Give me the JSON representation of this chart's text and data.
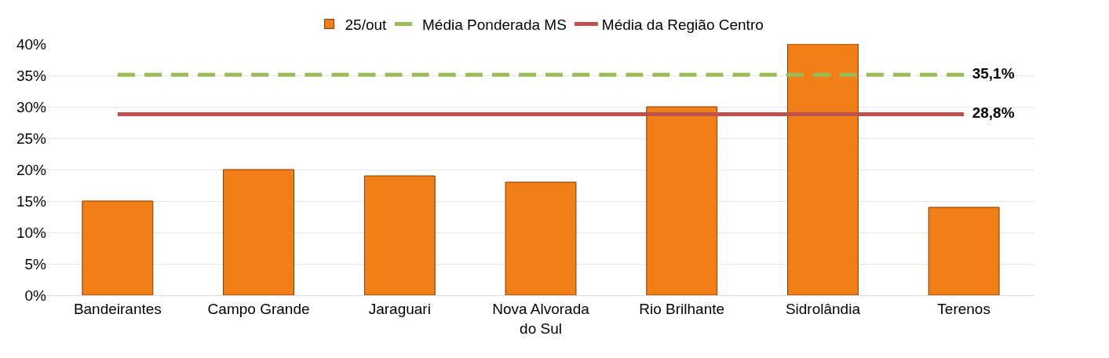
{
  "chart_data": {
    "type": "bar",
    "categories": [
      "Bandeirantes",
      "Campo Grande",
      "Jaraguari",
      "Nova Alvorada do Sul",
      "Rio Brilhante",
      "Sidrolândia",
      "Terenos"
    ],
    "series": [
      {
        "name": "25/out",
        "color": "#f07f17",
        "values": [
          15,
          20,
          19,
          18,
          30,
          40,
          14
        ]
      },
      {
        "name": "Média Ponderada MS",
        "type": "line",
        "line_style": "dashed",
        "color": "#9bbb59",
        "values": [
          35.1,
          35.1,
          35.1,
          35.1,
          35.1,
          35.1,
          35.1
        ],
        "value_labels": [
          null,
          null,
          null,
          null,
          null,
          null,
          "35,1%"
        ]
      },
      {
        "name": "Média da Região Centro",
        "type": "line",
        "line_style": "solid",
        "color": "#c0504d",
        "values": [
          28.8,
          28.8,
          28.8,
          28.8,
          28.8,
          28.8,
          28.8
        ],
        "value_labels": [
          null,
          null,
          null,
          null,
          null,
          null,
          "28,8%"
        ]
      }
    ],
    "ylim": [
      0,
      40
    ],
    "yticks": [
      {
        "value": 0,
        "label": "0%"
      },
      {
        "value": 5,
        "label": "5%"
      },
      {
        "value": 10,
        "label": "10%"
      },
      {
        "value": 15,
        "label": "15%"
      },
      {
        "value": 20,
        "label": "20%"
      },
      {
        "value": 25,
        "label": "25%"
      },
      {
        "value": 30,
        "label": "30%"
      },
      {
        "value": 35,
        "label": "35%"
      },
      {
        "value": 40,
        "label": "40%"
      }
    ],
    "grid": "y",
    "legend": "top",
    "marker": "none"
  }
}
